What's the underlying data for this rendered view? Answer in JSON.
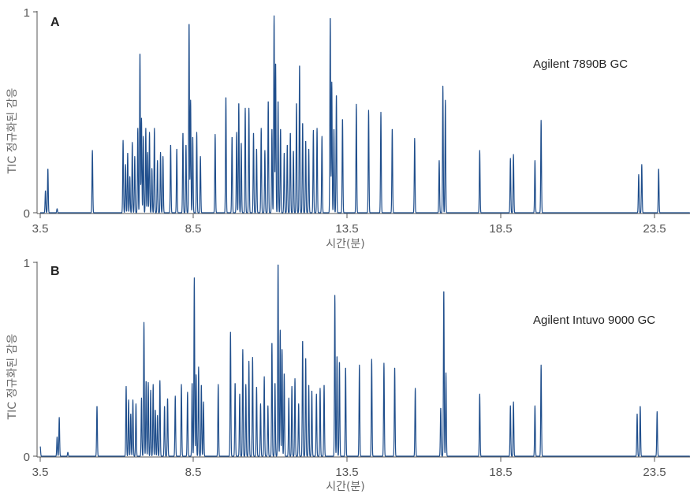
{
  "chart_data": [
    {
      "type": "line",
      "panel_label": "A",
      "instrument": "Agilent 7890B GC",
      "xlabel": "시간(분)",
      "ylabel": "TIC 정규화된 감응",
      "xlim": [
        3.5,
        26.0
      ],
      "ylim": [
        0,
        1
      ],
      "xticks": [
        3.5,
        8.5,
        13.5,
        18.5,
        23.5
      ],
      "xtick_labels": [
        "3.5",
        "8.5",
        "13.5",
        "18.5",
        "23.5"
      ],
      "yticks": [
        0,
        1
      ],
      "ytick_labels": [
        "0",
        "1"
      ],
      "color": "#1f4e8c",
      "grid": false,
      "peaks": [
        {
          "x": 3.67,
          "y": 0.11
        },
        {
          "x": 3.75,
          "y": 0.22
        },
        {
          "x": 4.05,
          "y": 0.02
        },
        {
          "x": 5.2,
          "y": 0.31
        },
        {
          "x": 6.2,
          "y": 0.36
        },
        {
          "x": 6.28,
          "y": 0.24
        },
        {
          "x": 6.35,
          "y": 0.3
        },
        {
          "x": 6.42,
          "y": 0.18
        },
        {
          "x": 6.5,
          "y": 0.35
        },
        {
          "x": 6.58,
          "y": 0.28
        },
        {
          "x": 6.68,
          "y": 0.42
        },
        {
          "x": 6.75,
          "y": 0.8
        },
        {
          "x": 6.8,
          "y": 0.47
        },
        {
          "x": 6.86,
          "y": 0.38
        },
        {
          "x": 6.94,
          "y": 0.42
        },
        {
          "x": 7.0,
          "y": 0.3
        },
        {
          "x": 7.06,
          "y": 0.4
        },
        {
          "x": 7.14,
          "y": 0.22
        },
        {
          "x": 7.22,
          "y": 0.42
        },
        {
          "x": 7.32,
          "y": 0.26
        },
        {
          "x": 7.42,
          "y": 0.3
        },
        {
          "x": 7.5,
          "y": 0.28
        },
        {
          "x": 7.75,
          "y": 0.34
        },
        {
          "x": 7.95,
          "y": 0.32
        },
        {
          "x": 8.15,
          "y": 0.4
        },
        {
          "x": 8.25,
          "y": 0.34
        },
        {
          "x": 8.35,
          "y": 0.95
        },
        {
          "x": 8.4,
          "y": 0.56
        },
        {
          "x": 8.47,
          "y": 0.38
        },
        {
          "x": 8.6,
          "y": 0.4
        },
        {
          "x": 8.72,
          "y": 0.28
        },
        {
          "x": 9.2,
          "y": 0.39
        },
        {
          "x": 9.55,
          "y": 0.58
        },
        {
          "x": 9.75,
          "y": 0.38
        },
        {
          "x": 9.9,
          "y": 0.4
        },
        {
          "x": 9.97,
          "y": 0.55
        },
        {
          "x": 10.05,
          "y": 0.35
        },
        {
          "x": 10.18,
          "y": 0.52
        },
        {
          "x": 10.3,
          "y": 0.52
        },
        {
          "x": 10.45,
          "y": 0.4
        },
        {
          "x": 10.55,
          "y": 0.32
        },
        {
          "x": 10.7,
          "y": 0.42
        },
        {
          "x": 10.82,
          "y": 0.31
        },
        {
          "x": 10.93,
          "y": 0.56
        },
        {
          "x": 11.05,
          "y": 0.42
        },
        {
          "x": 11.12,
          "y": 0.98
        },
        {
          "x": 11.17,
          "y": 0.75
        },
        {
          "x": 11.25,
          "y": 0.56
        },
        {
          "x": 11.33,
          "y": 0.42
        },
        {
          "x": 11.45,
          "y": 0.3
        },
        {
          "x": 11.55,
          "y": 0.34
        },
        {
          "x": 11.65,
          "y": 0.4
        },
        {
          "x": 11.75,
          "y": 0.31
        },
        {
          "x": 11.85,
          "y": 0.55
        },
        {
          "x": 11.95,
          "y": 0.74
        },
        {
          "x": 12.05,
          "y": 0.45
        },
        {
          "x": 12.15,
          "y": 0.36
        },
        {
          "x": 12.25,
          "y": 0.32
        },
        {
          "x": 12.4,
          "y": 0.41
        },
        {
          "x": 12.52,
          "y": 0.42
        },
        {
          "x": 12.68,
          "y": 0.38
        },
        {
          "x": 12.95,
          "y": 0.98
        },
        {
          "x": 13.0,
          "y": 0.65
        },
        {
          "x": 13.07,
          "y": 0.42
        },
        {
          "x": 13.15,
          "y": 0.59
        },
        {
          "x": 13.35,
          "y": 0.47
        },
        {
          "x": 13.8,
          "y": 0.54
        },
        {
          "x": 14.2,
          "y": 0.51
        },
        {
          "x": 14.6,
          "y": 0.5
        },
        {
          "x": 14.97,
          "y": 0.42
        },
        {
          "x": 15.7,
          "y": 0.37
        },
        {
          "x": 16.5,
          "y": 0.26
        },
        {
          "x": 16.62,
          "y": 0.63
        },
        {
          "x": 16.7,
          "y": 0.56
        },
        {
          "x": 17.82,
          "y": 0.31
        },
        {
          "x": 18.82,
          "y": 0.27
        },
        {
          "x": 18.92,
          "y": 0.29
        },
        {
          "x": 19.62,
          "y": 0.26
        },
        {
          "x": 19.82,
          "y": 0.46
        },
        {
          "x": 23.0,
          "y": 0.19
        },
        {
          "x": 23.1,
          "y": 0.24
        },
        {
          "x": 23.65,
          "y": 0.22
        }
      ]
    },
    {
      "type": "line",
      "panel_label": "B",
      "instrument": "Agilent Intuvo 9000 GC",
      "xlabel": "시간(분)",
      "ylabel": "TIC 정규화된 감응",
      "xlim": [
        3.5,
        26.0
      ],
      "ylim": [
        0,
        1
      ],
      "xticks": [
        3.5,
        8.5,
        13.5,
        18.5,
        23.5
      ],
      "xtick_labels": [
        "3.5",
        "8.5",
        "13.5",
        "18.5",
        "23.5"
      ],
      "yticks": [
        0,
        1
      ],
      "ytick_labels": [
        "0",
        "1"
      ],
      "color": "#1f4e8c",
      "grid": false,
      "peaks": [
        {
          "x": 3.5,
          "y": 0.05
        },
        {
          "x": 4.05,
          "y": 0.1
        },
        {
          "x": 4.12,
          "y": 0.2
        },
        {
          "x": 4.4,
          "y": 0.02
        },
        {
          "x": 5.35,
          "y": 0.26
        },
        {
          "x": 6.3,
          "y": 0.36
        },
        {
          "x": 6.38,
          "y": 0.29
        },
        {
          "x": 6.45,
          "y": 0.22
        },
        {
          "x": 6.52,
          "y": 0.29
        },
        {
          "x": 6.62,
          "y": 0.27
        },
        {
          "x": 6.8,
          "y": 0.3
        },
        {
          "x": 6.88,
          "y": 0.69
        },
        {
          "x": 6.95,
          "y": 0.39
        },
        {
          "x": 7.02,
          "y": 0.38
        },
        {
          "x": 7.1,
          "y": 0.34
        },
        {
          "x": 7.18,
          "y": 0.37
        },
        {
          "x": 7.25,
          "y": 0.24
        },
        {
          "x": 7.32,
          "y": 0.21
        },
        {
          "x": 7.4,
          "y": 0.39
        },
        {
          "x": 7.55,
          "y": 0.26
        },
        {
          "x": 7.65,
          "y": 0.3
        },
        {
          "x": 7.9,
          "y": 0.31
        },
        {
          "x": 8.1,
          "y": 0.37
        },
        {
          "x": 8.3,
          "y": 0.33
        },
        {
          "x": 8.45,
          "y": 0.38
        },
        {
          "x": 8.52,
          "y": 0.92
        },
        {
          "x": 8.58,
          "y": 0.42
        },
        {
          "x": 8.66,
          "y": 0.46
        },
        {
          "x": 8.75,
          "y": 0.37
        },
        {
          "x": 8.82,
          "y": 0.28
        },
        {
          "x": 9.3,
          "y": 0.37
        },
        {
          "x": 9.7,
          "y": 0.64
        },
        {
          "x": 9.85,
          "y": 0.38
        },
        {
          "x": 10.0,
          "y": 0.32
        },
        {
          "x": 10.1,
          "y": 0.55
        },
        {
          "x": 10.2,
          "y": 0.37
        },
        {
          "x": 10.3,
          "y": 0.49
        },
        {
          "x": 10.42,
          "y": 0.51
        },
        {
          "x": 10.55,
          "y": 0.36
        },
        {
          "x": 10.68,
          "y": 0.27
        },
        {
          "x": 10.8,
          "y": 0.41
        },
        {
          "x": 10.92,
          "y": 0.26
        },
        {
          "x": 11.05,
          "y": 0.59
        },
        {
          "x": 11.15,
          "y": 0.38
        },
        {
          "x": 11.25,
          "y": 1.0
        },
        {
          "x": 11.32,
          "y": 0.65
        },
        {
          "x": 11.38,
          "y": 0.55
        },
        {
          "x": 11.45,
          "y": 0.43
        },
        {
          "x": 11.6,
          "y": 0.3
        },
        {
          "x": 11.7,
          "y": 0.36
        },
        {
          "x": 11.8,
          "y": 0.4
        },
        {
          "x": 11.92,
          "y": 0.27
        },
        {
          "x": 12.05,
          "y": 0.6
        },
        {
          "x": 12.15,
          "y": 0.51
        },
        {
          "x": 12.25,
          "y": 0.37
        },
        {
          "x": 12.35,
          "y": 0.34
        },
        {
          "x": 12.5,
          "y": 0.32
        },
        {
          "x": 12.62,
          "y": 0.35
        },
        {
          "x": 12.75,
          "y": 0.37
        },
        {
          "x": 13.1,
          "y": 0.83
        },
        {
          "x": 13.17,
          "y": 0.52
        },
        {
          "x": 13.25,
          "y": 0.49
        },
        {
          "x": 13.45,
          "y": 0.46
        },
        {
          "x": 13.9,
          "y": 0.47
        },
        {
          "x": 14.3,
          "y": 0.5
        },
        {
          "x": 14.7,
          "y": 0.48
        },
        {
          "x": 15.05,
          "y": 0.46
        },
        {
          "x": 15.72,
          "y": 0.35
        },
        {
          "x": 16.55,
          "y": 0.25
        },
        {
          "x": 16.65,
          "y": 0.86
        },
        {
          "x": 16.72,
          "y": 0.43
        },
        {
          "x": 17.82,
          "y": 0.32
        },
        {
          "x": 18.82,
          "y": 0.26
        },
        {
          "x": 18.92,
          "y": 0.28
        },
        {
          "x": 19.62,
          "y": 0.26
        },
        {
          "x": 19.82,
          "y": 0.47
        },
        {
          "x": 22.95,
          "y": 0.22
        },
        {
          "x": 23.05,
          "y": 0.26
        },
        {
          "x": 23.6,
          "y": 0.23
        }
      ]
    }
  ]
}
